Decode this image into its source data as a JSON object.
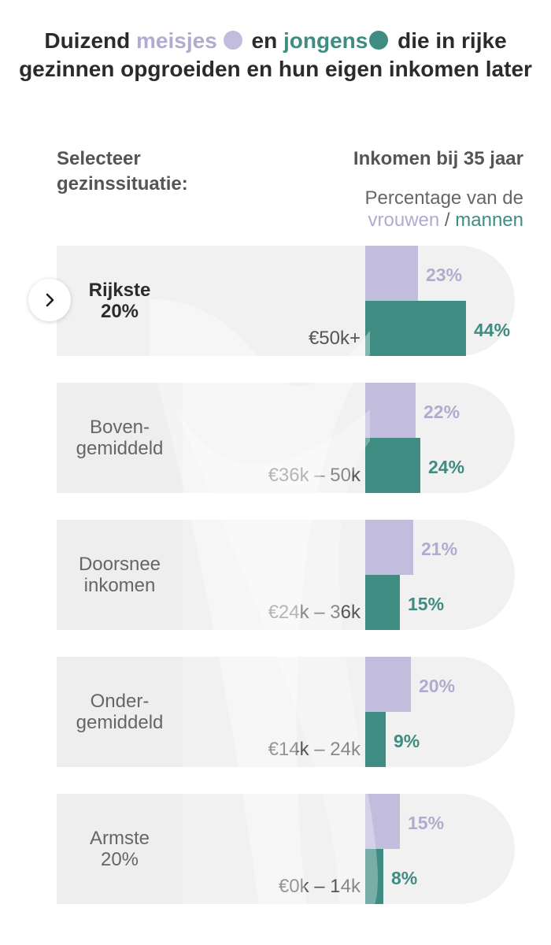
{
  "title": {
    "part1": "Duizend ",
    "women_word": "meisjes",
    "part2": " en ",
    "men_word": "jongens",
    "part3": " die in rijke gezinnen opgroeiden en hun eigen inkomen later"
  },
  "left_header": "Selecteer gezinssituatie:",
  "right_header": "Inkomen bij 35 jaar",
  "legend": {
    "line1": "Percentage van de",
    "women": "vrouwen",
    "sep": " / ",
    "men": "mannen"
  },
  "colors": {
    "women": "#c2bcdd",
    "women_text": "#b2aacf",
    "men": "#3e8c82",
    "panel": "#f1f1f1",
    "group": "#eeeeee"
  },
  "selected_group": "Rijkste 20%",
  "chart_data": {
    "type": "bar",
    "orientation": "horizontal",
    "title": "Inkomen bij 35 jaar",
    "subtitle": "Percentage van de vrouwen / mannen",
    "categories": [
      "€50k+",
      "€36k – 50k",
      "€24k – 36k",
      "€14k – 24k",
      "€0k – 14k"
    ],
    "series": [
      {
        "name": "vrouwen",
        "values": [
          23,
          22,
          21,
          20,
          15
        ]
      },
      {
        "name": "mannen",
        "values": [
          44,
          24,
          15,
          9,
          8
        ]
      }
    ],
    "value_suffix": "%",
    "xlim": [
      0,
      100
    ]
  },
  "groups": [
    {
      "line1": "Rijkste",
      "line2": "20%"
    },
    {
      "line1": "Boven-",
      "line2": "gemiddeld"
    },
    {
      "line1": "Doorsnee",
      "line2": "inkomen"
    },
    {
      "line1": "Onder-",
      "line2": "gemiddeld"
    },
    {
      "line1": "Armste",
      "line2": "20%"
    }
  ],
  "icons": {
    "selector": "chevron-right-icon"
  }
}
